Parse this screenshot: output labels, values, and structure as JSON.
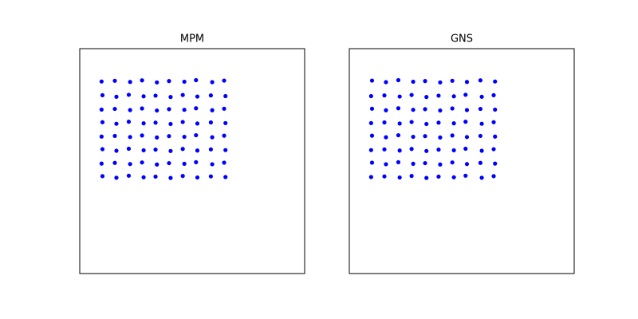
{
  "chart_data": [
    {
      "type": "scatter",
      "title": "MPM",
      "xlim": [
        0,
        1
      ],
      "ylim": [
        0,
        1
      ],
      "series": [
        {
          "color": "#0000ff",
          "x": [
            0.101,
            0.163,
            0.218,
            0.284,
            0.337,
            0.404,
            0.458,
            0.523,
            0.583,
            0.648,
            0.097,
            0.156,
            0.224,
            0.277,
            0.343,
            0.397,
            0.465,
            0.517,
            0.589,
            0.642,
            0.101,
            0.163,
            0.218,
            0.284,
            0.337,
            0.404,
            0.458,
            0.523,
            0.583,
            0.648,
            0.097,
            0.156,
            0.224,
            0.277,
            0.343,
            0.397,
            0.465,
            0.517,
            0.589,
            0.642,
            0.101,
            0.163,
            0.218,
            0.284,
            0.337,
            0.404,
            0.458,
            0.523,
            0.583,
            0.648,
            0.097,
            0.156,
            0.224,
            0.277,
            0.343,
            0.397,
            0.465,
            0.517,
            0.589,
            0.642,
            0.101,
            0.163,
            0.218,
            0.284,
            0.337,
            0.404,
            0.458,
            0.523,
            0.583,
            0.648,
            0.097,
            0.156,
            0.224,
            0.277,
            0.343,
            0.397,
            0.465,
            0.517,
            0.589,
            0.642
          ],
          "values": [
            0.433,
            0.426,
            0.435,
            0.428,
            0.431,
            0.425,
            0.434,
            0.427,
            0.432,
            0.429,
            0.489,
            0.492,
            0.487,
            0.494,
            0.485,
            0.491,
            0.488,
            0.495,
            0.486,
            0.493,
            0.553,
            0.546,
            0.555,
            0.548,
            0.551,
            0.545,
            0.554,
            0.547,
            0.552,
            0.549,
            0.609,
            0.612,
            0.607,
            0.614,
            0.605,
            0.611,
            0.608,
            0.615,
            0.606,
            0.613,
            0.673,
            0.666,
            0.675,
            0.668,
            0.671,
            0.665,
            0.674,
            0.667,
            0.672,
            0.669,
            0.729,
            0.732,
            0.727,
            0.734,
            0.725,
            0.731,
            0.728,
            0.735,
            0.726,
            0.733,
            0.793,
            0.786,
            0.795,
            0.788,
            0.791,
            0.785,
            0.794,
            0.787,
            0.792,
            0.789,
            0.854,
            0.857,
            0.852,
            0.859,
            0.85,
            0.856,
            0.853,
            0.86,
            0.851,
            0.858
          ]
        }
      ]
    },
    {
      "type": "scatter",
      "title": "GNS",
      "xlim": [
        0,
        1
      ],
      "ylim": [
        0,
        1
      ],
      "series": [
        {
          "color": "#0000ff",
          "x": [
            0.097,
            0.156,
            0.224,
            0.277,
            0.343,
            0.397,
            0.465,
            0.517,
            0.589,
            0.642,
            0.101,
            0.163,
            0.218,
            0.284,
            0.337,
            0.404,
            0.458,
            0.523,
            0.583,
            0.648,
            0.097,
            0.156,
            0.224,
            0.277,
            0.343,
            0.397,
            0.465,
            0.517,
            0.589,
            0.642,
            0.101,
            0.163,
            0.218,
            0.284,
            0.337,
            0.404,
            0.458,
            0.523,
            0.583,
            0.648,
            0.097,
            0.156,
            0.224,
            0.277,
            0.343,
            0.397,
            0.465,
            0.517,
            0.589,
            0.642,
            0.101,
            0.163,
            0.218,
            0.284,
            0.337,
            0.404,
            0.458,
            0.523,
            0.583,
            0.648,
            0.097,
            0.156,
            0.224,
            0.277,
            0.343,
            0.397,
            0.465,
            0.517,
            0.589,
            0.642,
            0.101,
            0.163,
            0.218,
            0.284,
            0.337,
            0.404,
            0.458,
            0.523,
            0.583,
            0.648
          ],
          "values": [
            0.429,
            0.432,
            0.427,
            0.434,
            0.425,
            0.431,
            0.428,
            0.435,
            0.426,
            0.433,
            0.493,
            0.486,
            0.495,
            0.488,
            0.491,
            0.485,
            0.494,
            0.487,
            0.492,
            0.489,
            0.549,
            0.552,
            0.547,
            0.554,
            0.545,
            0.551,
            0.548,
            0.555,
            0.546,
            0.553,
            0.613,
            0.606,
            0.615,
            0.608,
            0.611,
            0.605,
            0.614,
            0.607,
            0.612,
            0.609,
            0.669,
            0.672,
            0.667,
            0.674,
            0.665,
            0.671,
            0.668,
            0.675,
            0.666,
            0.673,
            0.733,
            0.726,
            0.735,
            0.728,
            0.731,
            0.725,
            0.734,
            0.727,
            0.732,
            0.729,
            0.789,
            0.792,
            0.787,
            0.794,
            0.785,
            0.791,
            0.788,
            0.795,
            0.786,
            0.793,
            0.858,
            0.851,
            0.86,
            0.853,
            0.856,
            0.85,
            0.857,
            0.852,
            0.859,
            0.854
          ]
        }
      ]
    }
  ]
}
